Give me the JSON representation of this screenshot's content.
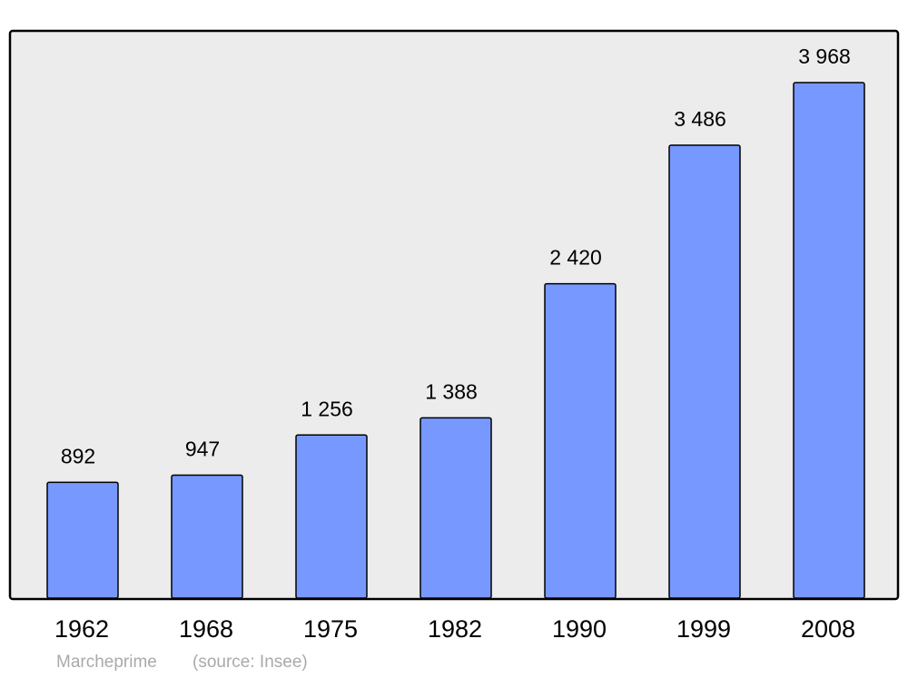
{
  "chart_data": {
    "type": "bar",
    "categories": [
      "1962",
      "1968",
      "1975",
      "1982",
      "1990",
      "1999",
      "2008"
    ],
    "values": [
      892,
      947,
      1256,
      1388,
      2420,
      3486,
      3968
    ],
    "value_labels": [
      "892",
      "947",
      "1 256",
      "1 388",
      "2 420",
      "3 486",
      "3 968"
    ],
    "color": "#7799ff",
    "caption": "Marcheprime",
    "source": "(source: Insee)"
  }
}
